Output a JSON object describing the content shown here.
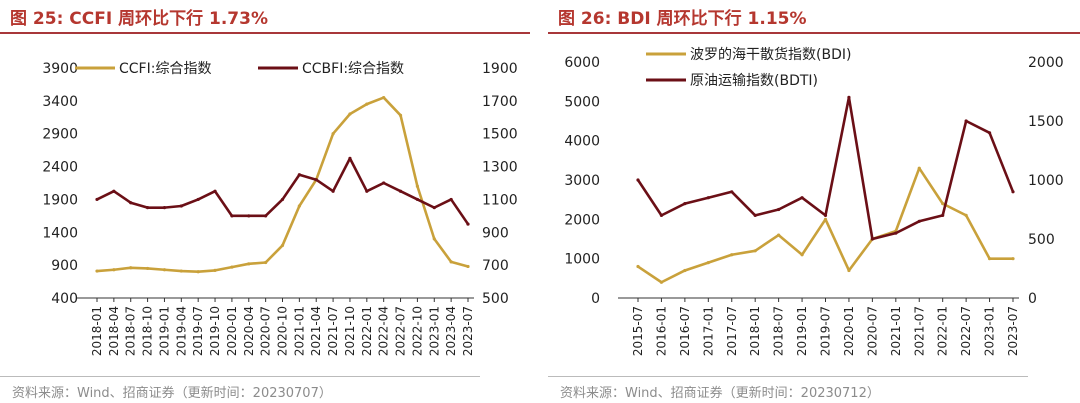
{
  "figures": [
    {
      "number_label": "图 25:",
      "title": "CCFI 周环比下行 1.73%",
      "source": "资料来源：Wind、招商证券（更新时间：20230707）"
    },
    {
      "number_label": "图 26:",
      "title": "BDI 周环比下行 1.15%",
      "source": "资料来源：Wind、招商证券（更新时间：20230712）"
    }
  ],
  "colors": {
    "gold": "#c9a13b",
    "maroon": "#6b0f16",
    "title_red": "#b5372f"
  },
  "chart_data": [
    {
      "type": "line",
      "title": "",
      "legend_position": "top",
      "grid": false,
      "x_ticks": [
        "2018-01",
        "2018-04",
        "2018-07",
        "2018-10",
        "2019-01",
        "2019-04",
        "2019-07",
        "2019-10",
        "2020-01",
        "2020-04",
        "2020-07",
        "2020-10",
        "2021-01",
        "2021-04",
        "2021-07",
        "2021-10",
        "2022-01",
        "2022-04",
        "2022-07",
        "2022-10",
        "2023-01",
        "2023-04",
        "2023-07"
      ],
      "y_left": {
        "min": 400,
        "max": 3900,
        "ticks": [
          400,
          900,
          1400,
          1900,
          2400,
          2900,
          3400,
          3900
        ]
      },
      "y_right": {
        "min": 500,
        "max": 1900,
        "ticks": [
          500,
          700,
          900,
          1100,
          1300,
          1500,
          1700,
          1900
        ]
      },
      "series": [
        {
          "name": "CCFI:综合指数",
          "axis": "left",
          "color": "#c9a13b",
          "x": [
            "2018-01",
            "2018-04",
            "2018-07",
            "2018-10",
            "2019-01",
            "2019-04",
            "2019-07",
            "2019-10",
            "2020-01",
            "2020-04",
            "2020-07",
            "2020-10",
            "2021-01",
            "2021-04",
            "2021-07",
            "2021-10",
            "2022-01",
            "2022-04",
            "2022-07",
            "2022-10",
            "2023-01",
            "2023-04",
            "2023-07"
          ],
          "values": [
            810,
            830,
            860,
            850,
            830,
            810,
            800,
            820,
            870,
            920,
            940,
            1200,
            1800,
            2200,
            2900,
            3200,
            3350,
            3450,
            3180,
            2100,
            1300,
            950,
            880
          ]
        },
        {
          "name": "CCBFI:综合指数",
          "axis": "right",
          "color": "#6b0f16",
          "x": [
            "2018-01",
            "2018-04",
            "2018-07",
            "2018-10",
            "2019-01",
            "2019-04",
            "2019-07",
            "2019-10",
            "2020-01",
            "2020-04",
            "2020-07",
            "2020-10",
            "2021-01",
            "2021-04",
            "2021-07",
            "2021-10",
            "2022-01",
            "2022-04",
            "2022-07",
            "2022-10",
            "2023-01",
            "2023-04",
            "2023-07"
          ],
          "values": [
            1100,
            1150,
            1080,
            1050,
            1050,
            1060,
            1100,
            1150,
            1000,
            1000,
            1000,
            1100,
            1250,
            1220,
            1150,
            1350,
            1150,
            1200,
            1150,
            1100,
            1050,
            1100,
            950
          ]
        }
      ]
    },
    {
      "type": "line",
      "title": "",
      "legend_position": "top-left",
      "grid": false,
      "x_ticks": [
        "2015-07",
        "2016-01",
        "2016-07",
        "2017-01",
        "2017-07",
        "2018-01",
        "2018-07",
        "2019-01",
        "2019-07",
        "2020-01",
        "2020-07",
        "2021-01",
        "2021-07",
        "2022-01",
        "2022-07",
        "2023-01",
        "2023-07"
      ],
      "y_left": {
        "min": 0,
        "max": 6000,
        "ticks": [
          0,
          1000,
          2000,
          3000,
          4000,
          5000,
          6000
        ]
      },
      "y_right": {
        "min": 0,
        "max": 2000,
        "ticks": [
          0,
          500,
          1000,
          1500,
          2000
        ]
      },
      "series": [
        {
          "name": "波罗的海干散货指数(BDI)",
          "axis": "left",
          "color": "#c9a13b",
          "x": [
            "2015-07",
            "2016-01",
            "2016-07",
            "2017-01",
            "2017-07",
            "2018-01",
            "2018-07",
            "2019-01",
            "2019-07",
            "2020-01",
            "2020-07",
            "2021-01",
            "2021-07",
            "2022-01",
            "2022-07",
            "2023-01",
            "2023-07"
          ],
          "values": [
            800,
            400,
            700,
            900,
            1100,
            1200,
            1600,
            1100,
            2000,
            700,
            1500,
            1700,
            3300,
            2400,
            2100,
            1000,
            1000
          ]
        },
        {
          "name": "原油运输指数(BDTI)",
          "axis": "right",
          "color": "#6b0f16",
          "x": [
            "2015-07",
            "2016-01",
            "2016-07",
            "2017-01",
            "2017-07",
            "2018-01",
            "2018-07",
            "2019-01",
            "2019-07",
            "2020-01",
            "2020-07",
            "2021-01",
            "2021-07",
            "2022-01",
            "2022-07",
            "2023-01",
            "2023-07"
          ],
          "values": [
            1000,
            700,
            800,
            850,
            900,
            700,
            750,
            850,
            700,
            1700,
            500,
            550,
            650,
            700,
            1500,
            1400,
            900
          ]
        }
      ]
    }
  ]
}
